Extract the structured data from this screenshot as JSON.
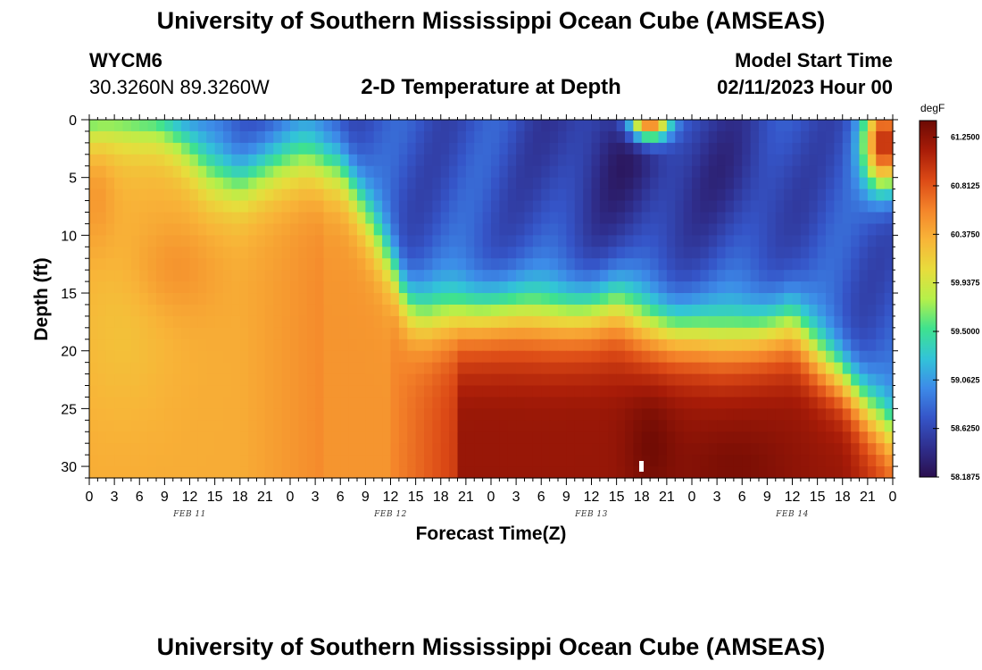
{
  "header": {
    "title": "University of Southern Mississippi Ocean Cube (AMSEAS)",
    "station_id": "WYCM6",
    "coordinates": "30.3260N  89.3260W",
    "subtitle": "2-D Temperature at Depth",
    "model_start_label": "Model Start Time",
    "model_start_value": "02/11/2023 Hour 00"
  },
  "footer": {
    "title": "University of Southern Mississippi Ocean Cube (AMSEAS)"
  },
  "chart_data": {
    "type": "heatmap",
    "title": "2-D Temperature at Depth",
    "xlabel": "Forecast Time(Z)",
    "ylabel": "Depth (ft)",
    "xlim": [
      0,
      96
    ],
    "ylim": [
      31,
      0
    ],
    "x_tick_labels": [
      "0",
      "3",
      "6",
      "9",
      "12",
      "15",
      "18",
      "21",
      "0",
      "3",
      "6",
      "9",
      "12",
      "15",
      "18",
      "21",
      "0",
      "3",
      "6",
      "9",
      "12",
      "15",
      "18",
      "21",
      "0",
      "3",
      "6",
      "9",
      "12",
      "15",
      "18",
      "21",
      "0"
    ],
    "y_ticks": [
      0,
      5,
      10,
      15,
      20,
      25,
      30
    ],
    "date_labels": [
      {
        "label": "FEB 11",
        "hour": 12
      },
      {
        "label": "FEB 12",
        "hour": 36
      },
      {
        "label": "FEB 13",
        "hour": 60
      },
      {
        "label": "FEB 14",
        "hour": 84
      }
    ],
    "colorbar": {
      "unit": "degF",
      "min": 58.1875,
      "max": 61.4,
      "tick_labels": [
        "61.2500",
        "60.8125",
        "60.3750",
        "59.9375",
        "59.5000",
        "59.0625",
        "58.6250",
        "58.1875"
      ],
      "tick_values": [
        61.25,
        60.8125,
        60.375,
        59.9375,
        59.5,
        59.0625,
        58.625,
        58.1875
      ],
      "colors": [
        "#2a0f4e",
        "#2f2f8e",
        "#3555c8",
        "#3d8be8",
        "#32c4d8",
        "#3fe28e",
        "#b6f04a",
        "#e8dc3c",
        "#f8b438",
        "#f4842a",
        "#dc4a16",
        "#a81c08",
        "#6c0a04"
      ]
    },
    "interface_depth_ft": [
      {
        "hour": 0,
        "depth": 0
      },
      {
        "hour": 8,
        "depth": 0
      },
      {
        "hour": 10,
        "depth": 1
      },
      {
        "hour": 14,
        "depth": 4
      },
      {
        "hour": 18,
        "depth": 5
      },
      {
        "hour": 22,
        "depth": 4
      },
      {
        "hour": 26,
        "depth": 3
      },
      {
        "hour": 30,
        "depth": 4
      },
      {
        "hour": 33,
        "depth": 8
      },
      {
        "hour": 36,
        "depth": 12
      },
      {
        "hour": 38,
        "depth": 16
      },
      {
        "hour": 40,
        "depth": 17
      },
      {
        "hour": 44,
        "depth": 16.5
      },
      {
        "hour": 48,
        "depth": 16.5
      },
      {
        "hour": 56,
        "depth": 16.5
      },
      {
        "hour": 60,
        "depth": 16.5
      },
      {
        "hour": 63,
        "depth": 16
      },
      {
        "hour": 66,
        "depth": 17
      },
      {
        "hour": 70,
        "depth": 18
      },
      {
        "hour": 75,
        "depth": 18.5
      },
      {
        "hour": 80,
        "depth": 18
      },
      {
        "hour": 84,
        "depth": 17.5
      },
      {
        "hour": 87,
        "depth": 20
      },
      {
        "hour": 90,
        "depth": 22
      },
      {
        "hour": 93,
        "depth": 25
      },
      {
        "hour": 96,
        "depth": 27
      }
    ]
  }
}
